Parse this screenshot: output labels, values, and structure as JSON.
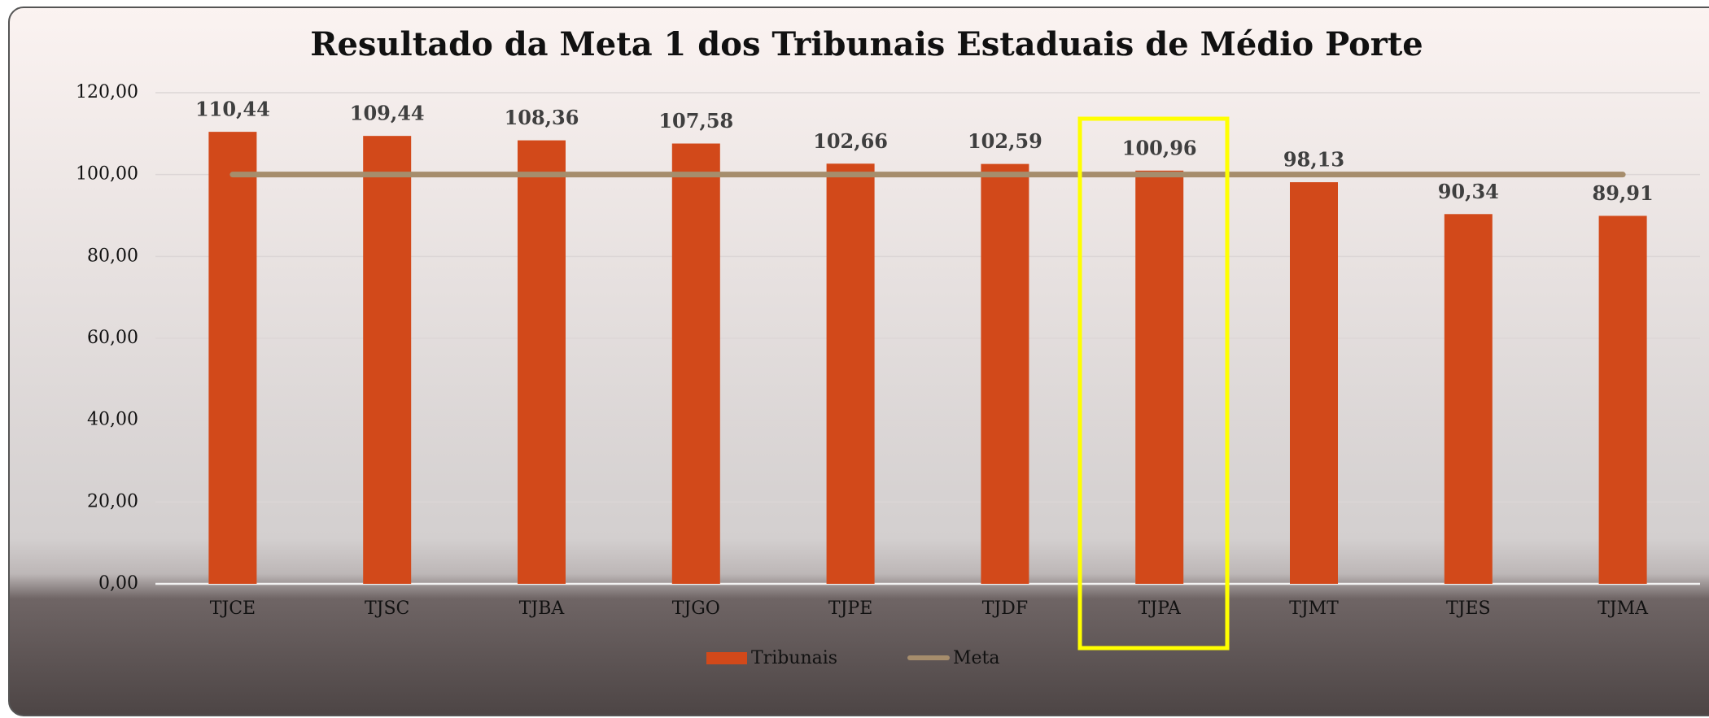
{
  "chart_data": {
    "type": "bar",
    "title": "Resultado da Meta 1 dos Tribunais Estaduais de Médio Porte",
    "categories": [
      "TJCE",
      "TJSC",
      "TJBA",
      "TJGO",
      "TJPE",
      "TJDF",
      "TJPA",
      "TJMT",
      "TJES",
      "TJMA"
    ],
    "series": [
      {
        "name": "Tribunais",
        "color": "#d2491a",
        "type": "bar",
        "values": [
          110.44,
          109.44,
          108.36,
          107.58,
          102.66,
          102.59,
          100.96,
          98.13,
          90.34,
          89.91
        ],
        "value_labels": [
          "110,44",
          "109,44",
          "108,36",
          "107,58",
          "102,66",
          "102,59",
          "100,96",
          "98,13",
          "90,34",
          "89,91"
        ]
      },
      {
        "name": "Meta",
        "color": "#a68d6c",
        "type": "line",
        "values": [
          100,
          100,
          100,
          100,
          100,
          100,
          100,
          100,
          100,
          100
        ]
      }
    ],
    "ylim": [
      0,
      120
    ],
    "yticks": [
      {
        "value": 0,
        "label": "0,00"
      },
      {
        "value": 20,
        "label": "20,00"
      },
      {
        "value": 40,
        "label": "40,00"
      },
      {
        "value": 60,
        "label": "60,00"
      },
      {
        "value": 80,
        "label": "80,00"
      },
      {
        "value": 100,
        "label": "100,00"
      },
      {
        "value": 120,
        "label": "120,00"
      }
    ],
    "grid": true,
    "legend": "bottom"
  }
}
